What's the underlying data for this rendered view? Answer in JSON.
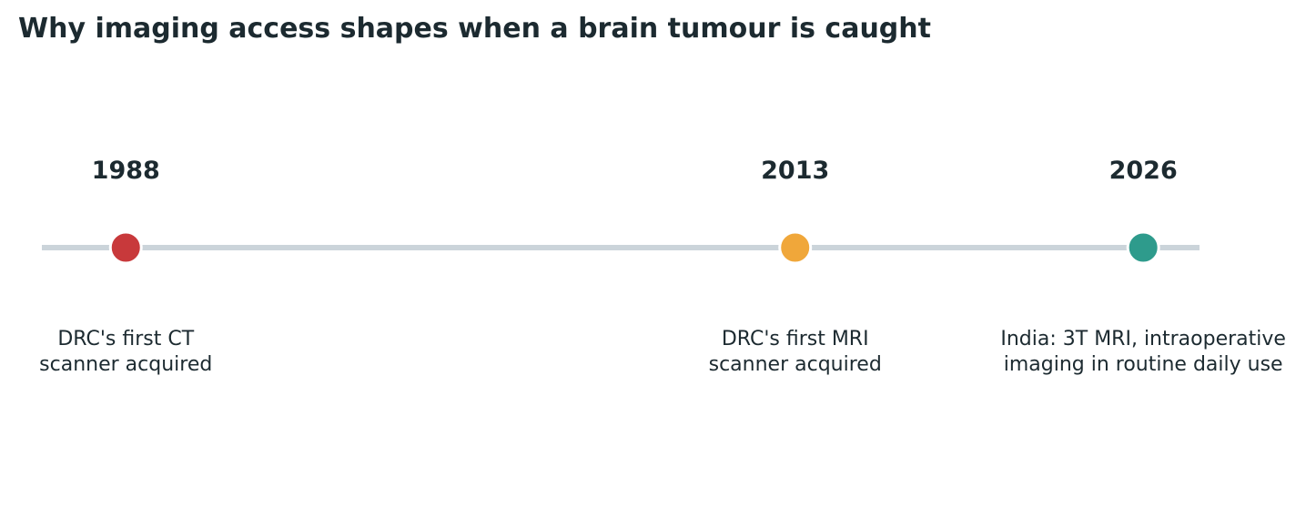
{
  "chart_data": {
    "type": "timeline",
    "title": "Why imaging access shapes when a brain tumour is caught",
    "x": [
      1988,
      2013,
      2026
    ],
    "labels": [
      "DRC's first CT\nscanner acquired",
      "DRC's first MRI\nscanner acquired",
      "India: 3T MRI, intraoperative\nimaging in routine daily use"
    ],
    "colors": [
      "#c8393b",
      "#f0a73a",
      "#2e9b8c"
    ],
    "line_color": "#cbd4da",
    "xlim": [
      1985,
      2028
    ]
  }
}
